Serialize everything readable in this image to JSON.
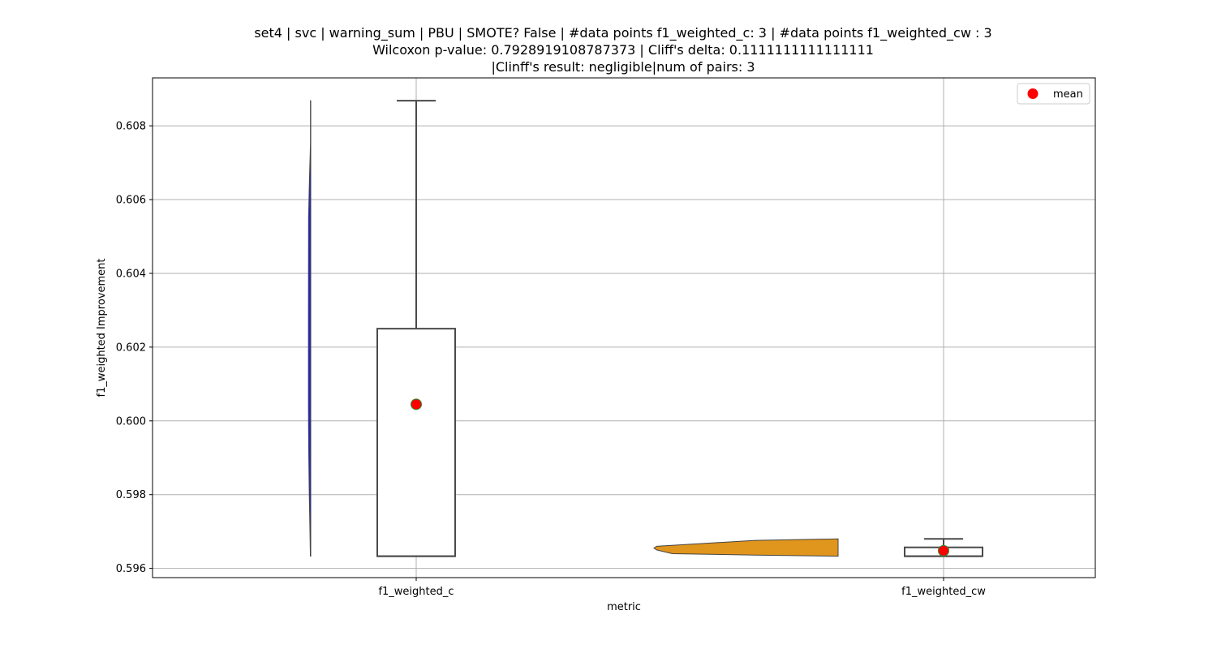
{
  "chart_data": {
    "type": "violin-box",
    "title_lines": [
      "set4 | svc | warning_sum | PBU | SMOTE? False | #data points f1_weighted_c: 3 | #data points f1_weighted_cw : 3",
      "Wilcoxon p-value: 0.7928919108787373 | Cliff's delta: 0.1111111111111111",
      "|Clinff's result: negligible|num of pairs: 3"
    ],
    "xlabel": "metric",
    "ylabel": "f1_weighted Improvement",
    "categories": [
      "f1_weighted_c",
      "f1_weighted_cw"
    ],
    "ylim": [
      0.59575,
      0.6093
    ],
    "yticks": [
      0.596,
      0.598,
      0.6,
      0.602,
      0.604,
      0.606,
      0.608
    ],
    "ytick_labels": [
      "0.596",
      "0.598",
      "0.600",
      "0.602",
      "0.604",
      "0.606",
      "0.608"
    ],
    "grid": true,
    "legend": {
      "placement": "top-right",
      "entries": [
        {
          "label": "mean",
          "marker": "circle",
          "color": "#ff0000"
        }
      ]
    },
    "series": [
      {
        "category": "f1_weighted_c",
        "violin_color": "#2020d8",
        "violin_side": "left",
        "violin_profile": [
          [
            0.59633,
            0.15
          ],
          [
            0.597,
            0.32
          ],
          [
            0.598,
            0.6
          ],
          [
            0.599,
            0.8
          ],
          [
            0.5998,
            0.9
          ],
          [
            0.6005,
            0.95
          ],
          [
            0.603,
            0.95
          ],
          [
            0.6055,
            0.9
          ],
          [
            0.6065,
            0.55
          ],
          [
            0.6075,
            0.12
          ],
          [
            0.60868,
            0.12
          ]
        ],
        "box": {
          "whisker_low": 0.59633,
          "q1": 0.59633,
          "median": 0.59633,
          "q3": 0.6025,
          "whisker_high": 0.60868
        },
        "mean": 0.60045
      },
      {
        "category": "f1_weighted_cw",
        "violin_color": "#e0951c",
        "violin_side": "right",
        "violin_profile": [
          [
            0.59633,
            0.0
          ],
          [
            0.59636,
            0.45
          ],
          [
            0.5964,
            0.9
          ],
          [
            0.5965,
            0.985
          ],
          [
            0.59655,
            1.0
          ],
          [
            0.5966,
            0.985
          ],
          [
            0.59668,
            0.72
          ],
          [
            0.59676,
            0.45
          ],
          [
            0.5968,
            0.0
          ]
        ],
        "box": {
          "whisker_low": 0.59633,
          "q1": 0.59633,
          "median": 0.59633,
          "q3": 0.59657,
          "whisker_high": 0.5968
        },
        "mean": 0.59648
      }
    ]
  },
  "colors": {
    "grid": "#b0b0b0",
    "box_edge": "#4a4a4a",
    "mean_fill": "#ff0000",
    "mean_edge": "#2e8b2e",
    "axis": "#000000"
  }
}
